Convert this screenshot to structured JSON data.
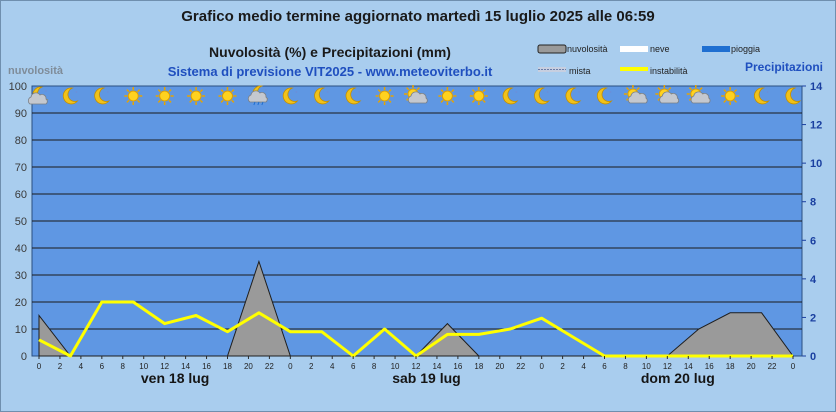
{
  "header": {
    "title": "Grafico medio termine aggiornato martedì 15 luglio 2025 alle 06:59",
    "subtitle": "Nuvolosità (%) e Precipitazioni (mm)",
    "source": "Sistema di previsione VIT2025 - www.meteoviterbo.it"
  },
  "legend": {
    "cloud": "nuvolosità",
    "snow": "neve",
    "rain": "pioggia",
    "mixed": "mista",
    "instability": "instabilità"
  },
  "colors": {
    "background": "#a9cdee",
    "plot": "#5f97e3",
    "cloud_fill": "#9a9a9a",
    "instability": "#ffff00",
    "snow": "#ffffff",
    "rain": "#1f6fd1"
  },
  "chart_data": {
    "type": "area",
    "ylabel": "nuvolosità",
    "y2label": "Precipitazioni",
    "ylim": [
      0,
      100
    ],
    "y2lim": [
      0,
      14
    ],
    "yticks": [
      0,
      10,
      20,
      30,
      40,
      50,
      60,
      70,
      80,
      90,
      100
    ],
    "y2ticks": [
      0,
      2,
      4,
      6,
      8,
      10,
      12,
      14
    ],
    "x_ticks": [
      "0",
      "2",
      "4",
      "6",
      "8",
      "10",
      "12",
      "14",
      "16",
      "18",
      "20",
      "22",
      "0",
      "2",
      "4",
      "6",
      "8",
      "10",
      "12",
      "14",
      "16",
      "18",
      "20",
      "22",
      "0",
      "2",
      "4",
      "6",
      "8",
      "10",
      "12",
      "14",
      "16",
      "18",
      "20",
      "22",
      "0"
    ],
    "day_labels": [
      "ven 18 lug",
      "sab 19 lug",
      "dom 20 lug"
    ],
    "series": [
      {
        "name": "nuvolosità",
        "x": [
          0,
          3,
          6,
          9,
          12,
          15,
          18,
          21,
          24,
          27,
          30,
          33,
          36,
          39,
          42,
          45,
          48,
          51,
          54,
          57,
          60,
          63,
          66,
          69,
          72
        ],
        "values": [
          15,
          0,
          0,
          0,
          0,
          0,
          0,
          35,
          0,
          0,
          0,
          0,
          0,
          12,
          0,
          0,
          0,
          0,
          0,
          0,
          0,
          10,
          16,
          16,
          0
        ]
      },
      {
        "name": "instabilità",
        "x": [
          0,
          3,
          6,
          9,
          12,
          15,
          18,
          21,
          24,
          27,
          30,
          33,
          36,
          39,
          42,
          45,
          48,
          51,
          54,
          57,
          60,
          63,
          66,
          69,
          72
        ],
        "values": [
          6,
          0,
          20,
          20,
          12,
          15,
          9,
          16,
          9,
          9,
          0,
          10,
          0,
          8,
          8,
          10,
          14,
          7,
          0,
          0,
          0,
          0,
          0,
          0,
          0
        ]
      },
      {
        "name": "pioggia",
        "x": [
          0,
          72
        ],
        "values": [
          0,
          0
        ]
      }
    ],
    "weather_icons": [
      "moon-cloud",
      "moon",
      "moon",
      "sun",
      "sun",
      "sun",
      "sun",
      "moon-cloud-rain",
      "moon",
      "moon",
      "moon",
      "sun",
      "sun-cloud",
      "sun",
      "sun",
      "moon",
      "moon",
      "moon",
      "moon",
      "sun-cloud",
      "sun-cloud",
      "sun-cloud",
      "sun",
      "moon",
      "moon"
    ]
  }
}
